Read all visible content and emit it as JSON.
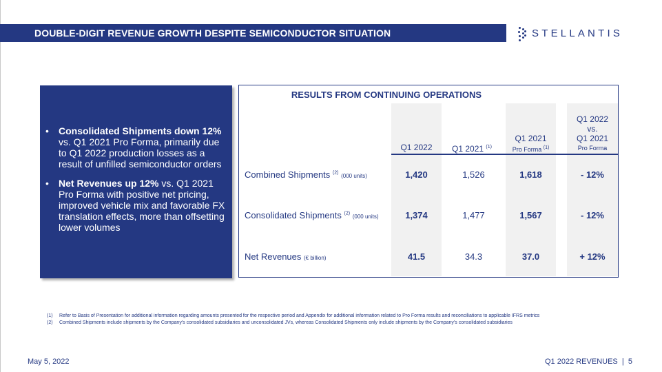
{
  "header": {
    "title": "DOUBLE-DIGIT REVENUE GROWTH DESPITE SEMICONDUCTOR SITUATION"
  },
  "logo": {
    "text": "STELLANTIS",
    "icon": "dots-icon"
  },
  "left_panel": {
    "bullets": [
      {
        "marker": "•",
        "bold": "Consolidated Shipments down 12%",
        "text": " vs. Q1 2021 Pro Forma, primarily due to Q1 2022 production losses as a result of unfilled semiconductor orders"
      },
      {
        "marker": "•",
        "bold": "Net Revenues up 12%",
        "text": " vs. Q1 2021 Pro Forma with positive net pricing, improved vehicle mix and favorable FX translation effects, more than offsetting lower volumes"
      }
    ]
  },
  "table": {
    "title": "RESULTS FROM CONTINUING OPERATIONS",
    "columns": [
      {
        "line1": "Q1 2022",
        "sup": "",
        "small": ""
      },
      {
        "line1": "Q1 2021",
        "sup": "(1)",
        "small": ""
      },
      {
        "line1": "Q1 2021",
        "sup": "",
        "small": "Pro Forma",
        "small_sup": "(1)"
      },
      {
        "pre": "Q1 2022",
        "mid": "vs.",
        "line1": "Q1 2021",
        "sup": "",
        "small": "Pro Forma"
      }
    ],
    "rows": [
      {
        "label": "Combined Shipments",
        "sup": "(2)",
        "unit": "(000 units)",
        "values": [
          "1,420",
          "1,526",
          "1,618",
          "- 12%"
        ]
      },
      {
        "label": "Consolidated Shipments",
        "sup": "(2)",
        "unit": "(000 units)",
        "values": [
          "1,374",
          "1,477",
          "1,567",
          "- 12%"
        ]
      },
      {
        "label": "Net Revenues",
        "sup": "",
        "unit": "(€ billion)",
        "values": [
          "41.5",
          "34.3",
          "37.0",
          "+ 12%"
        ]
      }
    ]
  },
  "footnotes": [
    {
      "num": "(1)",
      "text": "Refer to Basis of Presentation for additional information regarding amounts presented for the respective period and Appendix for additional information related to Pro Forma results and reconciliations to applicable IFRS metrics"
    },
    {
      "num": "(2)",
      "text": "Combined Shipments include shipments by the Company's consolidated subsidiaries and unconsolidated JVs, whereas Consolidated Shipments only include shipments by the Company's consolidated subsidiaries"
    }
  ],
  "footer": {
    "date": "May 5, 2022",
    "section": "Q1 2022 REVENUES",
    "separator": "|",
    "page": "5"
  },
  "colors": {
    "brand_blue": "#243882",
    "shade": "#f1f1f1"
  }
}
